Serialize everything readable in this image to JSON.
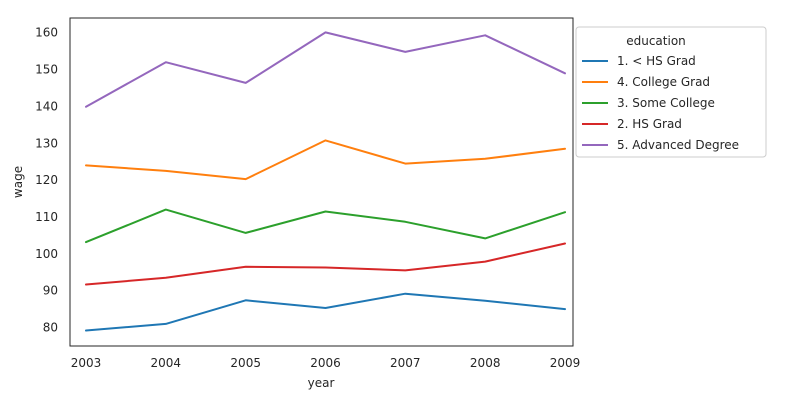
{
  "chart_data": {
    "type": "line",
    "title": "",
    "xlabel": "year",
    "ylabel": "wage",
    "x": [
      2003,
      2004,
      2005,
      2006,
      2007,
      2008,
      2009
    ],
    "xlim": [
      2002.8,
      2009.1
    ],
    "ylim": [
      75,
      164
    ],
    "yticks": [
      80,
      90,
      100,
      110,
      120,
      130,
      140,
      150,
      160
    ],
    "grid": false,
    "legend": {
      "title": "education",
      "placement": "outside-right"
    },
    "series": [
      {
        "name": "1. < HS Grad",
        "color": "#1f77b4",
        "values": [
          79.2,
          81,
          87.4,
          85.3,
          89.2,
          87.3,
          85
        ]
      },
      {
        "name": "4. College Grad",
        "color": "#ff7f0e",
        "values": [
          124,
          122.5,
          120.3,
          130.8,
          124.5,
          125.8,
          128.5
        ]
      },
      {
        "name": "3. Some College",
        "color": "#2ca02c",
        "values": [
          103.2,
          112,
          105.7,
          111.5,
          108.7,
          104.2,
          111.3
        ]
      },
      {
        "name": "2. HS Grad",
        "color": "#d62728",
        "values": [
          91.7,
          93.5,
          96.5,
          96.3,
          95.5,
          97.9,
          102.8
        ]
      },
      {
        "name": "5. Advanced Degree",
        "color": "#9467bd",
        "values": [
          139.9,
          152,
          146.4,
          160.1,
          154.8,
          159.3,
          149
        ]
      }
    ]
  }
}
